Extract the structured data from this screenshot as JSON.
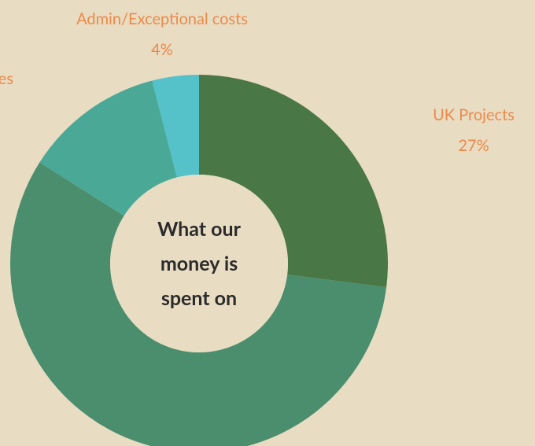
{
  "chart_data": {
    "type": "donut",
    "categories": [
      "UK Projects",
      null,
      "es",
      "Admin/Exceptional costs"
    ],
    "values": [
      27,
      57,
      12,
      4
    ],
    "value_labels": [
      "27%",
      null,
      null,
      "4%"
    ],
    "colors": [
      "#4a7746",
      "#4a8e6d",
      "#4aa896",
      "#55c1c9"
    ],
    "center_label": [
      "What our",
      "money is",
      "spent on"
    ]
  }
}
